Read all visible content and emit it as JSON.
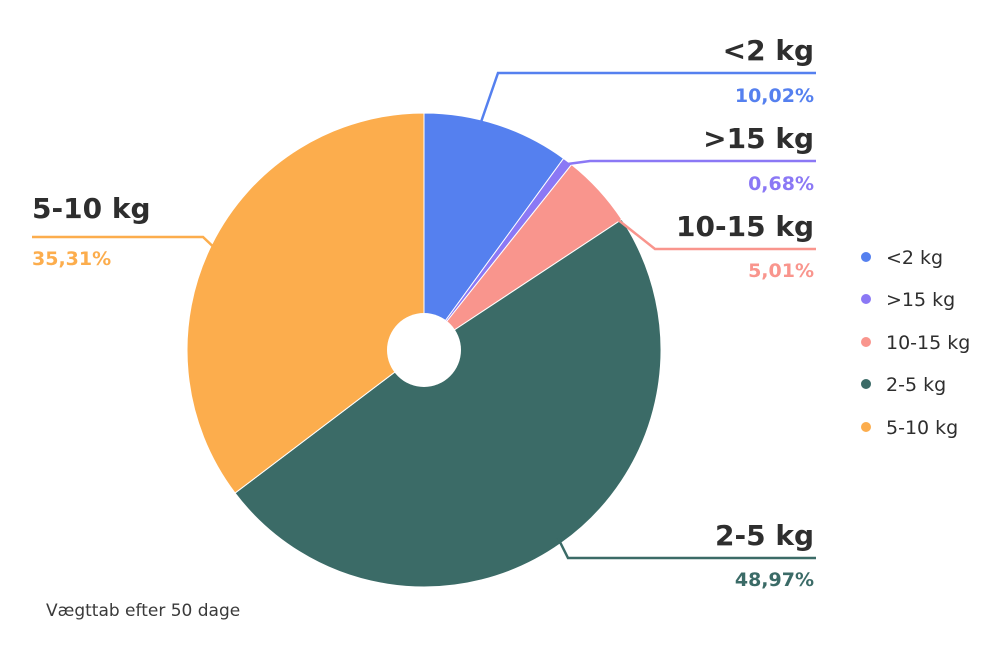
{
  "chart_data": {
    "type": "pie",
    "categories": [
      "<2 kg",
      ">15 kg",
      "10-15 kg",
      "2-5 kg",
      "5-10 kg"
    ],
    "values": [
      10.02,
      0.68,
      5.01,
      48.97,
      35.31
    ],
    "value_labels": [
      "10,02%",
      "0,68%",
      "5,01%",
      "48,97%",
      "35,31%"
    ],
    "colors": [
      "#5580ef",
      "#8b78f5",
      "#f9958d",
      "#3b6b67",
      "#fcad4d"
    ],
    "unit": "%",
    "legend": [
      "<2 kg",
      ">15 kg",
      "10-15 kg",
      "2-5 kg",
      "5-10 kg"
    ],
    "legend_position": "right",
    "caption": "Vægttab efter 50 dage",
    "donut_hole": true
  }
}
